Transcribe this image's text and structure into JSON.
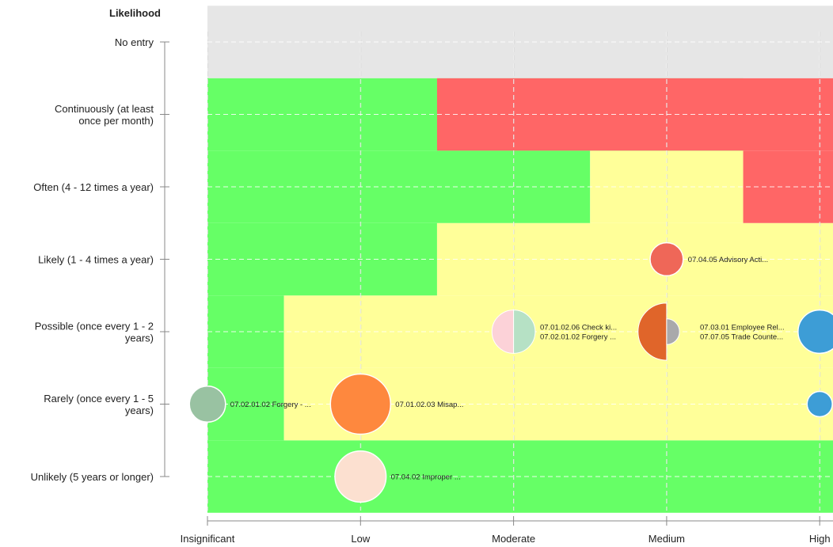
{
  "chart_data": {
    "type": "scatter",
    "title": "",
    "ylabel": "Likelihood",
    "xlabel": "",
    "x_categories": [
      "Insignificant",
      "Low",
      "Moderate",
      "Medium",
      "High"
    ],
    "y_categories": [
      "Unlikely (5 years or longer)",
      "Rarely (once every 1 - 5 years)",
      "Possible (once every 1 - 2 years)",
      "Likely (1 - 4 times a year)",
      "Often (4 - 12 times a year)",
      "Continuously (at least once per month)",
      "No entry"
    ],
    "y_tick_lines": [
      [
        "Unlikely (5 years or longer)"
      ],
      [
        "Rarely (once every 1 - 5",
        "years)"
      ],
      [
        "Possible (once every 1 - 2",
        "years)"
      ],
      [
        "Likely (1 - 4 times a year)"
      ],
      [
        "Often (4 - 12 times a year)"
      ],
      [
        "Continuously (at least",
        "once per month)"
      ],
      [
        "No entry"
      ]
    ],
    "zones": {
      "colors": {
        "low": "#66ff66",
        "medium": "#ffff99",
        "high": "#ff6666",
        "no_entry": "#e6e6e6"
      },
      "no_entry_row": 6,
      "medium_from_x": [
        99,
        0.5,
        0.5,
        1.5,
        2.5,
        3.5
      ],
      "high_from_x": [
        99,
        99,
        99,
        4.5,
        3.5,
        1.5
      ]
    },
    "grid": true,
    "bubbles": [
      {
        "x": 0,
        "y": 1,
        "size": 0.6,
        "halves": [
          "#99c2a2"
        ],
        "labels": [
          "07.02.01.02 Forgery - ..."
        ]
      },
      {
        "x": 1,
        "y": 1,
        "size": 1.0,
        "halves": [
          "#fe883e"
        ],
        "labels": [
          "07.01.02.03 Misap..."
        ]
      },
      {
        "x": 1,
        "y": 0,
        "size": 0.85,
        "halves": [
          "#fce0d0"
        ],
        "labels": [
          "07.04.02 Improper ..."
        ]
      },
      {
        "x": 2,
        "y": 2,
        "size": 0.72,
        "halves": [
          "#fcd2d8",
          "#b6e1c5"
        ],
        "labels": [
          "07.01.02.06 Check ki...",
          "07.02.01.02 Forgery ..."
        ]
      },
      {
        "x": 3,
        "y": 3,
        "size": 0.55,
        "halves": [
          "#ef6758"
        ],
        "labels": [
          "07.04.05 Advisory Acti..."
        ]
      },
      {
        "x": 3,
        "y": 2,
        "size": 0.95,
        "halves": [
          "#e0652a",
          "#a9a9ab"
        ],
        "half_scale": [
          1.0,
          0.45
        ],
        "labels": [
          "07.03.01 Employee Rel...",
          "07.07.05 Trade Counte..."
        ]
      },
      {
        "x": 4,
        "y": 2,
        "size": 0.72,
        "halves": [
          "#3d9dd6"
        ],
        "labels": []
      },
      {
        "x": 4,
        "y": 1,
        "size": 0.42,
        "halves": [
          "#3d9dd6"
        ],
        "labels": []
      }
    ]
  }
}
